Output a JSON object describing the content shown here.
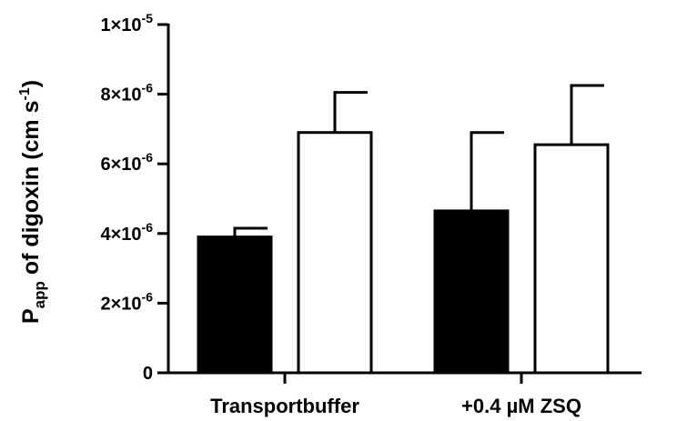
{
  "chart_data": {
    "type": "bar",
    "title": "",
    "xlabel": "",
    "ylabel": {
      "main": "P",
      "subscript": "app",
      "rest": " of digoxin (cm s",
      "superscript": "-1",
      "close": ")"
    },
    "ylim": [
      0,
      1e-05
    ],
    "yticks": [
      {
        "value": 0,
        "mantissa": "0",
        "exponent": ""
      },
      {
        "value": 2e-06,
        "mantissa": "2×10",
        "exponent": "-6"
      },
      {
        "value": 4e-06,
        "mantissa": "4×10",
        "exponent": "-6"
      },
      {
        "value": 6e-06,
        "mantissa": "6×10",
        "exponent": "-6"
      },
      {
        "value": 8e-06,
        "mantissa": "8×10",
        "exponent": "-6"
      },
      {
        "value": 1e-05,
        "mantissa": "1×10",
        "exponent": "-5"
      }
    ],
    "categories": [
      "Transportbuffer",
      "+0.4 µM ZSQ"
    ],
    "series": [
      {
        "color": "#000000",
        "values": [
          3.9e-06,
          4.65e-06
        ],
        "errors": [
          2.5e-07,
          2.25e-06
        ]
      },
      {
        "color": "#ffffff",
        "values": [
          6.9e-06,
          6.55e-06
        ],
        "errors": [
          1.15e-06,
          1.7e-06
        ]
      }
    ],
    "grid": false,
    "legend": "none"
  }
}
